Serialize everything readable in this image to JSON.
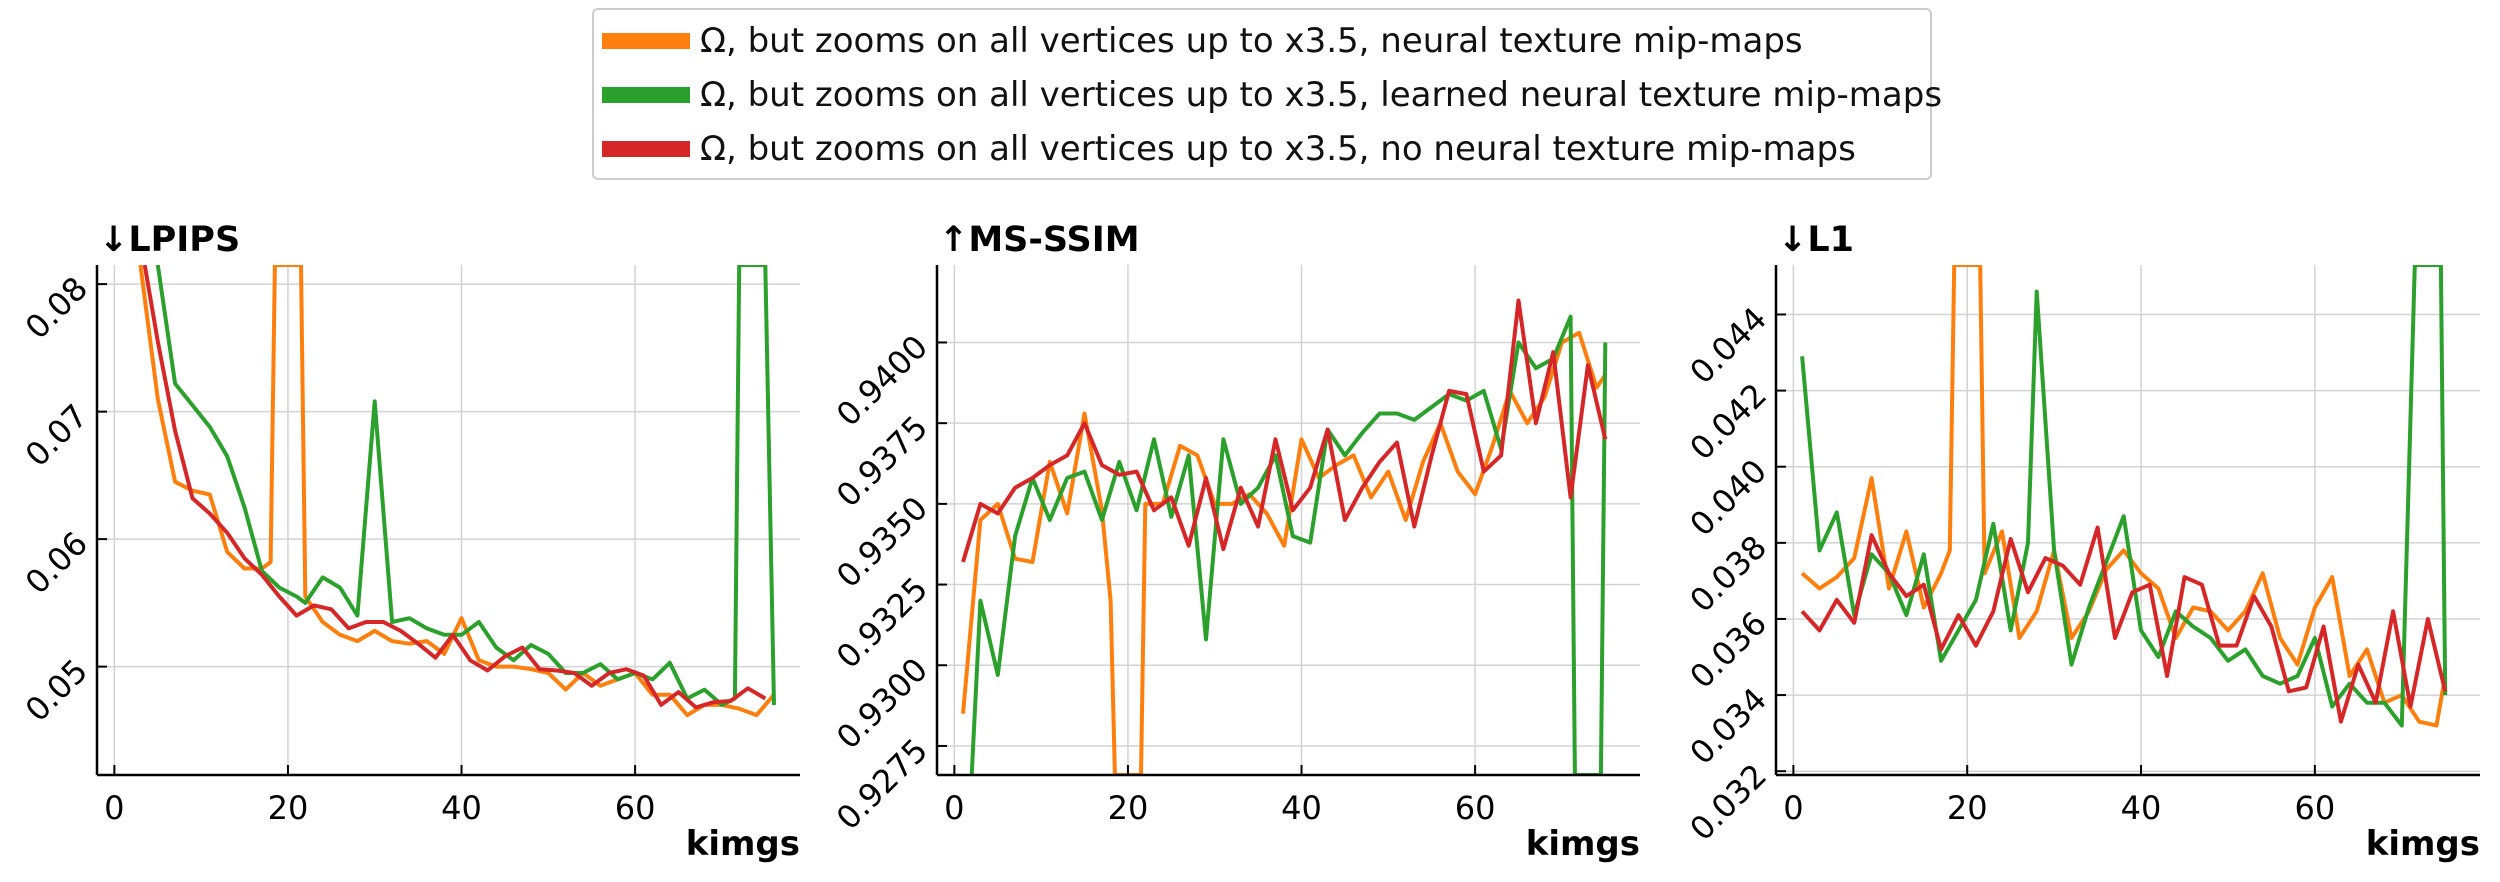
{
  "chart_data": [
    {
      "type": "line",
      "title": "↓LPIPS",
      "xlabel": "kimgs",
      "ylabel": "",
      "xlim": [
        -2,
        79
      ],
      "ylim": [
        0.0415,
        0.0815
      ],
      "xticks": [
        0,
        20,
        40,
        60
      ],
      "yticks": [
        0.05,
        0.06,
        0.07,
        0.08
      ],
      "tick_format": 2,
      "grid": true,
      "series": [
        {
          "name": "Ω, but zooms on all vertices up to x3.5, neural texture mip-maps",
          "color": "#ff7f0e",
          "x": [
            3,
            5,
            7,
            9,
            11,
            13,
            15,
            17,
            18,
            18.5,
            21.5,
            22,
            24,
            26,
            28,
            30,
            32,
            34,
            36,
            38,
            40,
            42,
            44,
            46,
            48,
            50,
            52,
            54,
            56,
            58,
            60,
            62,
            64,
            66,
            68,
            70,
            72,
            74,
            76
          ],
          "y": [
            0.0815,
            0.071,
            0.0645,
            0.0638,
            0.0635,
            0.059,
            0.0577,
            0.0577,
            0.0582,
            0.0815,
            0.0815,
            0.0555,
            0.0535,
            0.0525,
            0.052,
            0.0528,
            0.052,
            0.0518,
            0.052,
            0.051,
            0.0538,
            0.0505,
            0.05,
            0.05,
            0.0498,
            0.0495,
            0.0482,
            0.0495,
            0.0485,
            0.049,
            0.0495,
            0.0478,
            0.0478,
            0.0462,
            0.047,
            0.047,
            0.0467,
            0.0462,
            0.0478
          ]
        },
        {
          "name": "Ω, but zooms on all vertices up to x3.5, learned neural texture mip-maps",
          "color": "#2ca02c",
          "x": [
            5,
            7,
            9,
            11,
            13,
            15,
            17,
            19,
            21,
            22,
            24,
            26,
            28,
            30,
            32,
            34,
            36,
            38,
            40,
            42,
            44,
            46,
            48,
            50,
            52,
            54,
            56,
            58,
            60,
            62,
            64,
            66,
            68,
            70,
            71.5,
            72,
            75,
            76
          ],
          "y": [
            0.0815,
            0.0722,
            0.0705,
            0.0688,
            0.0665,
            0.0625,
            0.0575,
            0.0562,
            0.0555,
            0.055,
            0.057,
            0.0562,
            0.054,
            0.0708,
            0.0535,
            0.0538,
            0.053,
            0.0525,
            0.0525,
            0.0535,
            0.0515,
            0.0505,
            0.0517,
            0.051,
            0.0495,
            0.0495,
            0.0502,
            0.049,
            0.0495,
            0.049,
            0.0503,
            0.0475,
            0.0482,
            0.047,
            0.0475,
            0.0815,
            0.0815,
            0.047
          ]
        },
        {
          "name": "Ω, but zooms on all vertices up to x3.5, no neural texture mip-maps",
          "color": "#d62728",
          "x": [
            3.5,
            5,
            7,
            9,
            11,
            13,
            15,
            17,
            19,
            21,
            23,
            25,
            27,
            29,
            31,
            33,
            35,
            37,
            39,
            41,
            43,
            45,
            47,
            49,
            51,
            53,
            55,
            57,
            59,
            61,
            63,
            65,
            67,
            69,
            71,
            73,
            75
          ],
          "y": [
            0.0815,
            0.0755,
            0.0685,
            0.0632,
            0.062,
            0.0605,
            0.0585,
            0.0572,
            0.0555,
            0.054,
            0.0548,
            0.0545,
            0.053,
            0.0535,
            0.0535,
            0.0528,
            0.0518,
            0.0507,
            0.0525,
            0.0505,
            0.0497,
            0.0508,
            0.0515,
            0.0498,
            0.0497,
            0.0495,
            0.0485,
            0.0495,
            0.0498,
            0.0493,
            0.047,
            0.048,
            0.0468,
            0.0472,
            0.0473,
            0.0483,
            0.0475
          ]
        }
      ]
    },
    {
      "type": "line",
      "title": "↑MS-SSIM",
      "xlabel": "kimgs",
      "ylabel": "",
      "xlim": [
        -2,
        79
      ],
      "ylim": [
        0.9266,
        0.9424
      ],
      "xticks": [
        0,
        20,
        40,
        60
      ],
      "yticks": [
        0.9275,
        0.93,
        0.9325,
        0.935,
        0.9375,
        0.94
      ],
      "tick_format": 4,
      "grid": true,
      "series": [
        {
          "name": "Ω, but zooms on all vertices up to x3.5, neural texture mip-maps",
          "color": "#ff7f0e",
          "x": [
            1,
            3,
            5,
            7,
            9,
            11,
            13,
            15,
            17,
            18,
            18.5,
            21.5,
            22,
            24,
            26,
            28,
            30,
            32,
            34,
            36,
            38,
            40,
            42,
            44,
            46,
            48,
            50,
            52,
            54,
            56,
            58,
            60,
            62,
            64,
            66,
            68,
            70,
            72,
            74,
            75
          ],
          "y": [
            0.9285,
            0.9345,
            0.935,
            0.9333,
            0.9332,
            0.9363,
            0.9347,
            0.9378,
            0.9348,
            0.932,
            0.9266,
            0.9266,
            0.935,
            0.935,
            0.9368,
            0.9365,
            0.935,
            0.935,
            0.9353,
            0.9347,
            0.9337,
            0.937,
            0.9358,
            0.9362,
            0.9365,
            0.9352,
            0.936,
            0.9345,
            0.9363,
            0.9375,
            0.936,
            0.9353,
            0.9368,
            0.9385,
            0.9375,
            0.9383,
            0.94,
            0.9403,
            0.9386,
            0.939
          ]
        },
        {
          "name": "Ω, but zooms on all vertices up to x3.5, learned neural texture mip-maps",
          "color": "#2ca02c",
          "x": [
            2,
            3,
            5,
            7,
            9,
            11,
            13,
            15,
            17,
            19,
            21,
            23,
            25,
            27,
            29,
            31,
            33,
            35,
            37,
            39,
            41,
            43,
            45,
            47,
            49,
            51,
            53,
            55,
            57,
            59,
            61,
            63,
            65,
            67,
            69,
            71,
            71.5,
            74.5,
            75
          ],
          "y": [
            0.9266,
            0.932,
            0.9297,
            0.934,
            0.9358,
            0.9345,
            0.9358,
            0.936,
            0.9345,
            0.9363,
            0.9348,
            0.937,
            0.9346,
            0.9365,
            0.9308,
            0.937,
            0.935,
            0.9355,
            0.9365,
            0.934,
            0.9338,
            0.9373,
            0.9365,
            0.9372,
            0.9378,
            0.9378,
            0.9376,
            0.938,
            0.9384,
            0.9382,
            0.9385,
            0.9367,
            0.94,
            0.9392,
            0.9395,
            0.9408,
            0.9266,
            0.9266,
            0.94
          ]
        },
        {
          "name": "Ω, but zooms on all vertices up to x3.5, no neural texture mip-maps",
          "color": "#d62728",
          "x": [
            1,
            3,
            5,
            7,
            9,
            11,
            13,
            15,
            17,
            19,
            21,
            23,
            25,
            27,
            29,
            31,
            33,
            35,
            37,
            39,
            41,
            43,
            45,
            47,
            49,
            51,
            53,
            55,
            57,
            59,
            61,
            63,
            65,
            67,
            69,
            71,
            73,
            75
          ],
          "y": [
            0.9332,
            0.935,
            0.9347,
            0.9355,
            0.9358,
            0.9362,
            0.9365,
            0.9375,
            0.9362,
            0.9359,
            0.936,
            0.9348,
            0.9352,
            0.9337,
            0.9358,
            0.9336,
            0.9355,
            0.9343,
            0.937,
            0.9348,
            0.9355,
            0.9373,
            0.9345,
            0.9355,
            0.9363,
            0.9369,
            0.9343,
            0.9365,
            0.9385,
            0.9384,
            0.936,
            0.9365,
            0.9413,
            0.9375,
            0.9397,
            0.9352,
            0.9393,
            0.937
          ]
        }
      ]
    },
    {
      "type": "line",
      "title": "↓L1",
      "xlabel": "kimgs",
      "ylabel": "",
      "xlim": [
        -2,
        79
      ],
      "ylim": [
        0.0319,
        0.0453
      ],
      "xticks": [
        0,
        20,
        40,
        60
      ],
      "yticks": [
        0.032,
        0.034,
        0.036,
        0.038,
        0.04,
        0.042,
        0.044
      ],
      "tick_format": 3,
      "grid": true,
      "series": [
        {
          "name": "Ω, but zooms on all vertices up to x3.5, neural texture mip-maps",
          "color": "#ff7f0e",
          "x": [
            1,
            3,
            5,
            7,
            9,
            11,
            13,
            15,
            17,
            18,
            18.5,
            21.5,
            22,
            24,
            26,
            28,
            30,
            32,
            34,
            36,
            38,
            40,
            42,
            44,
            46,
            48,
            50,
            52,
            54,
            56,
            58,
            60,
            62,
            64,
            66,
            68,
            70,
            72,
            74,
            75
          ],
          "y": [
            0.0372,
            0.0368,
            0.0371,
            0.0376,
            0.0397,
            0.0368,
            0.0383,
            0.0363,
            0.0372,
            0.0378,
            0.0453,
            0.0453,
            0.0372,
            0.0383,
            0.0355,
            0.0362,
            0.0378,
            0.0355,
            0.0362,
            0.0373,
            0.0378,
            0.0372,
            0.0368,
            0.0355,
            0.0363,
            0.0362,
            0.0357,
            0.0362,
            0.0372,
            0.0355,
            0.0348,
            0.0363,
            0.0371,
            0.0345,
            0.0352,
            0.0338,
            0.034,
            0.0333,
            0.0332,
            0.0345
          ]
        },
        {
          "name": "Ω, but zooms on all vertices up to x3.5, learned neural texture mip-maps",
          "color": "#2ca02c",
          "x": [
            1,
            3,
            5,
            7,
            9,
            11,
            13,
            15,
            17,
            19,
            21,
            23,
            25,
            27,
            28,
            30,
            32,
            34,
            36,
            38,
            40,
            42,
            44,
            46,
            48,
            50,
            52,
            54,
            56,
            58,
            60,
            62,
            64,
            66,
            68,
            70,
            71.5,
            74.5,
            75
          ],
          "y": [
            0.0429,
            0.0378,
            0.0388,
            0.0361,
            0.0377,
            0.0372,
            0.0361,
            0.0377,
            0.0349,
            0.0357,
            0.0365,
            0.0385,
            0.0357,
            0.038,
            0.0446,
            0.0378,
            0.0348,
            0.0363,
            0.0375,
            0.0387,
            0.0357,
            0.035,
            0.0362,
            0.0358,
            0.0355,
            0.0349,
            0.0352,
            0.0345,
            0.0343,
            0.0345,
            0.0355,
            0.0337,
            0.0343,
            0.0338,
            0.0338,
            0.0332,
            0.0453,
            0.0453,
            0.034
          ]
        },
        {
          "name": "Ω, but zooms on all vertices up to x3.5, no neural texture mip-maps",
          "color": "#d62728",
          "x": [
            1,
            3,
            5,
            7,
            9,
            11,
            13,
            15,
            17,
            19,
            21,
            23,
            25,
            27,
            29,
            31,
            33,
            35,
            37,
            39,
            41,
            43,
            45,
            47,
            49,
            51,
            53,
            55,
            57,
            59,
            61,
            63,
            65,
            67,
            69,
            71,
            73,
            75
          ],
          "y": [
            0.0362,
            0.0357,
            0.0365,
            0.0359,
            0.0382,
            0.0372,
            0.0366,
            0.0369,
            0.0352,
            0.0361,
            0.0353,
            0.0362,
            0.0381,
            0.0367,
            0.0376,
            0.0374,
            0.0369,
            0.0384,
            0.0355,
            0.0367,
            0.0369,
            0.0345,
            0.0371,
            0.0369,
            0.0353,
            0.0353,
            0.0366,
            0.0358,
            0.0341,
            0.0342,
            0.0358,
            0.0333,
            0.0348,
            0.0338,
            0.0362,
            0.0337,
            0.036,
            0.0341
          ]
        }
      ]
    }
  ]
}
